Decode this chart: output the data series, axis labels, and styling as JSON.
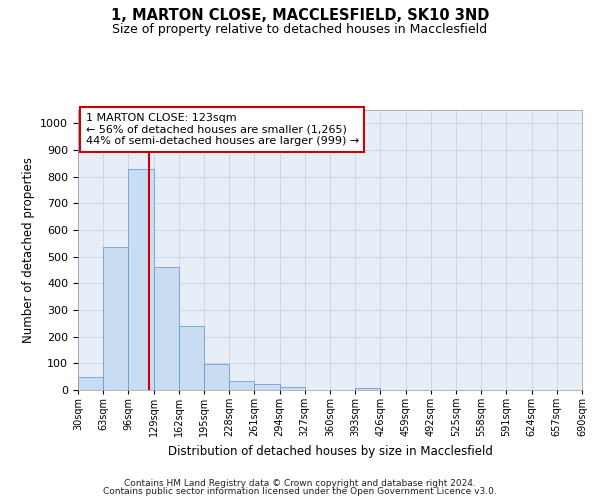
{
  "title1": "1, MARTON CLOSE, MACCLESFIELD, SK10 3ND",
  "title2": "Size of property relative to detached houses in Macclesfield",
  "xlabel": "Distribution of detached houses by size in Macclesfield",
  "ylabel": "Number of detached properties",
  "footer1": "Contains HM Land Registry data © Crown copyright and database right 2024.",
  "footer2": "Contains public sector information licensed under the Open Government Licence v3.0.",
  "bins": [
    30,
    63,
    96,
    129,
    162,
    195,
    228,
    261,
    294,
    327,
    360,
    393,
    426,
    459,
    492,
    525,
    558,
    591,
    624,
    657,
    690
  ],
  "bin_labels": [
    "30sqm",
    "63sqm",
    "96sqm",
    "129sqm",
    "162sqm",
    "195sqm",
    "228sqm",
    "261sqm",
    "294sqm",
    "327sqm",
    "360sqm",
    "393sqm",
    "426sqm",
    "459sqm",
    "492sqm",
    "525sqm",
    "558sqm",
    "591sqm",
    "624sqm",
    "657sqm",
    "690sqm"
  ],
  "bar_heights": [
    50,
    535,
    830,
    460,
    240,
    97,
    35,
    22,
    12,
    0,
    0,
    8,
    0,
    0,
    0,
    0,
    0,
    0,
    0,
    0
  ],
  "bar_color": "#c9ddf2",
  "bar_edge_color": "#6090c8",
  "vline_x": 123,
  "vline_color": "#cc0000",
  "ylim": [
    0,
    1050
  ],
  "yticks": [
    0,
    100,
    200,
    300,
    400,
    500,
    600,
    700,
    800,
    900,
    1000
  ],
  "annotation_text": "1 MARTON CLOSE: 123sqm\n← 56% of detached houses are smaller (1,265)\n44% of semi-detached houses are larger (999) →",
  "annotation_box_color": "#cc0000",
  "grid_color": "#ccd6e8",
  "background_color": "#e8eef8"
}
